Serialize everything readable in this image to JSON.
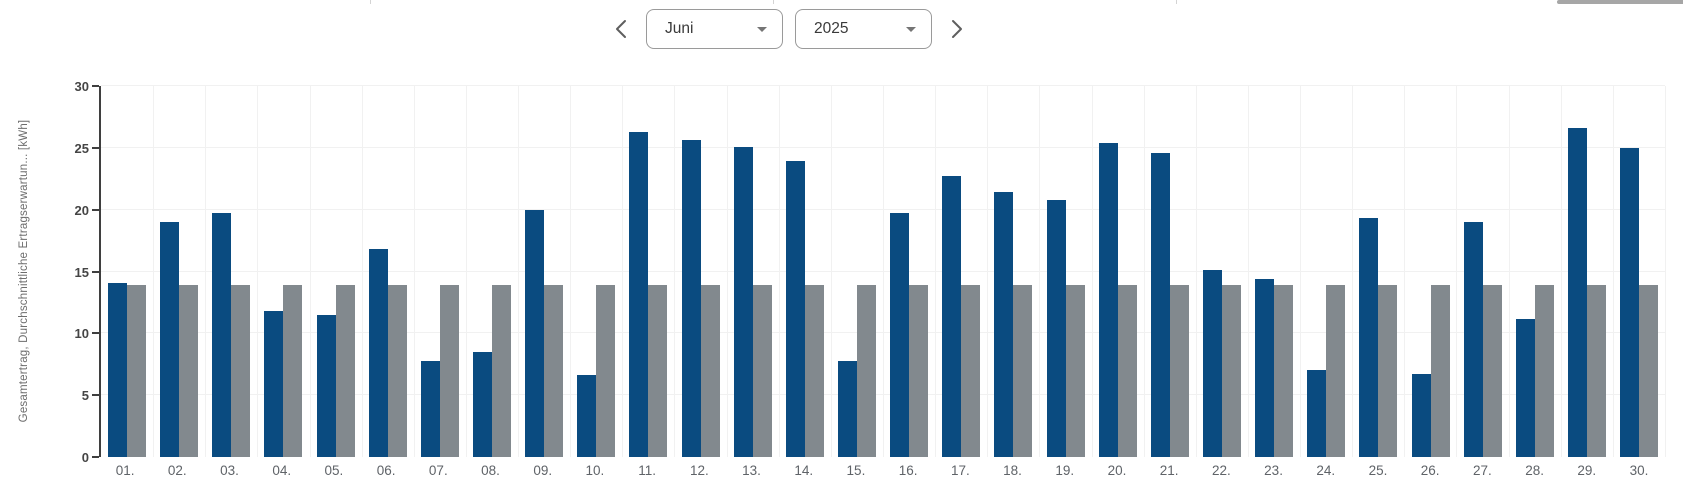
{
  "colors": {
    "bar_total": "#0a4b80",
    "bar_expected": "#82898e",
    "gridline": "#f1f1f1",
    "axis": "#3f3f3f",
    "tick_label": "#454545",
    "day_label": "#5f6368",
    "scrollbar": "#a6a6a6"
  },
  "controls": {
    "prev_icon": "chevron-left",
    "next_icon": "chevron-right",
    "month_select": {
      "value": "Juni",
      "icon": "caret-down"
    },
    "year_select": {
      "value": "2025",
      "icon": "caret-down"
    }
  },
  "chart_data": {
    "type": "bar",
    "title": "",
    "ylabel": "Gesamtertrag, Durchschnittliche Ertragserwartun... [kWh]",
    "xlabel": "",
    "ylim": [
      0,
      30
    ],
    "yticks": [
      0,
      5,
      10,
      15,
      20,
      25,
      30
    ],
    "grid": true,
    "legend": "none",
    "categories": [
      "01.",
      "02.",
      "03.",
      "04.",
      "05.",
      "06.",
      "07.",
      "08.",
      "09.",
      "10.",
      "11.",
      "12.",
      "13.",
      "14.",
      "15.",
      "16.",
      "17.",
      "18.",
      "19.",
      "20.",
      "21.",
      "22.",
      "23.",
      "24.",
      "25.",
      "26.",
      "27.",
      "28.",
      "29.",
      "30."
    ],
    "series": [
      {
        "name": "Gesamtertrag",
        "color": "#0a4b80",
        "values": [
          14.1,
          19.0,
          19.7,
          11.8,
          11.5,
          16.8,
          7.8,
          8.5,
          20.0,
          6.6,
          26.3,
          25.6,
          25.1,
          23.9,
          7.8,
          19.7,
          22.7,
          21.4,
          20.8,
          25.4,
          24.6,
          15.1,
          14.4,
          7.0,
          19.3,
          6.7,
          19.0,
          11.2,
          26.6,
          25.0
        ]
      },
      {
        "name": "Durchschnittliche Ertragserwartun...",
        "color": "#82898e",
        "values": [
          13.9,
          13.9,
          13.9,
          13.9,
          13.9,
          13.9,
          13.9,
          13.9,
          13.9,
          13.9,
          13.9,
          13.9,
          13.9,
          13.9,
          13.9,
          13.9,
          13.9,
          13.9,
          13.9,
          13.9,
          13.9,
          13.9,
          13.9,
          13.9,
          13.9,
          13.9,
          13.9,
          13.9,
          13.9,
          13.9
        ]
      }
    ]
  }
}
